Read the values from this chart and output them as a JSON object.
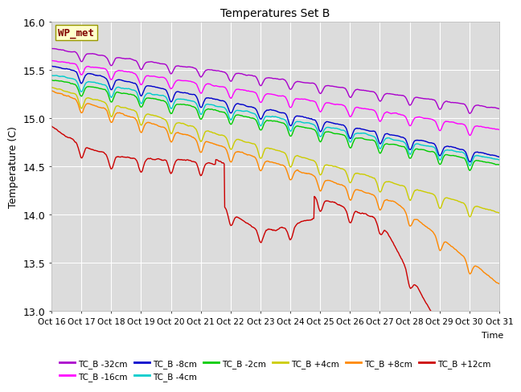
{
  "title": "Temperatures Set B",
  "xlabel": "Time",
  "ylabel": "Temperature (C)",
  "ylim": [
    13.0,
    16.0
  ],
  "yticks": [
    13.0,
    13.5,
    14.0,
    14.5,
    15.0,
    15.5,
    16.0
  ],
  "xtick_labels": [
    "Oct 16",
    "Oct 17",
    "Oct 18",
    "Oct 19",
    "Oct 20",
    "Oct 21",
    "Oct 22",
    "Oct 23",
    "Oct 24",
    "Oct 25",
    "Oct 26",
    "Oct 27",
    "Oct 28",
    "Oct 29",
    "Oct 30",
    "Oct 31"
  ],
  "wp_met_label": "WP_met",
  "wp_met_bg": "#ffffcc",
  "wp_met_fg": "#800000",
  "bg_color": "#dcdcdc",
  "series": [
    {
      "label": "TC_B -32cm",
      "color": "#aa00cc"
    },
    {
      "label": "TC_B -16cm",
      "color": "#ff00ff"
    },
    {
      "label": "TC_B -8cm",
      "color": "#0000cc"
    },
    {
      "label": "TC_B -4cm",
      "color": "#00cccc"
    },
    {
      "label": "TC_B -2cm",
      "color": "#00cc00"
    },
    {
      "label": "TC_B +4cm",
      "color": "#cccc00"
    },
    {
      "label": "TC_B +8cm",
      "color": "#ff8800"
    },
    {
      "label": "TC_B +12cm",
      "color": "#cc0000"
    }
  ],
  "n_points": 960,
  "days": 15
}
